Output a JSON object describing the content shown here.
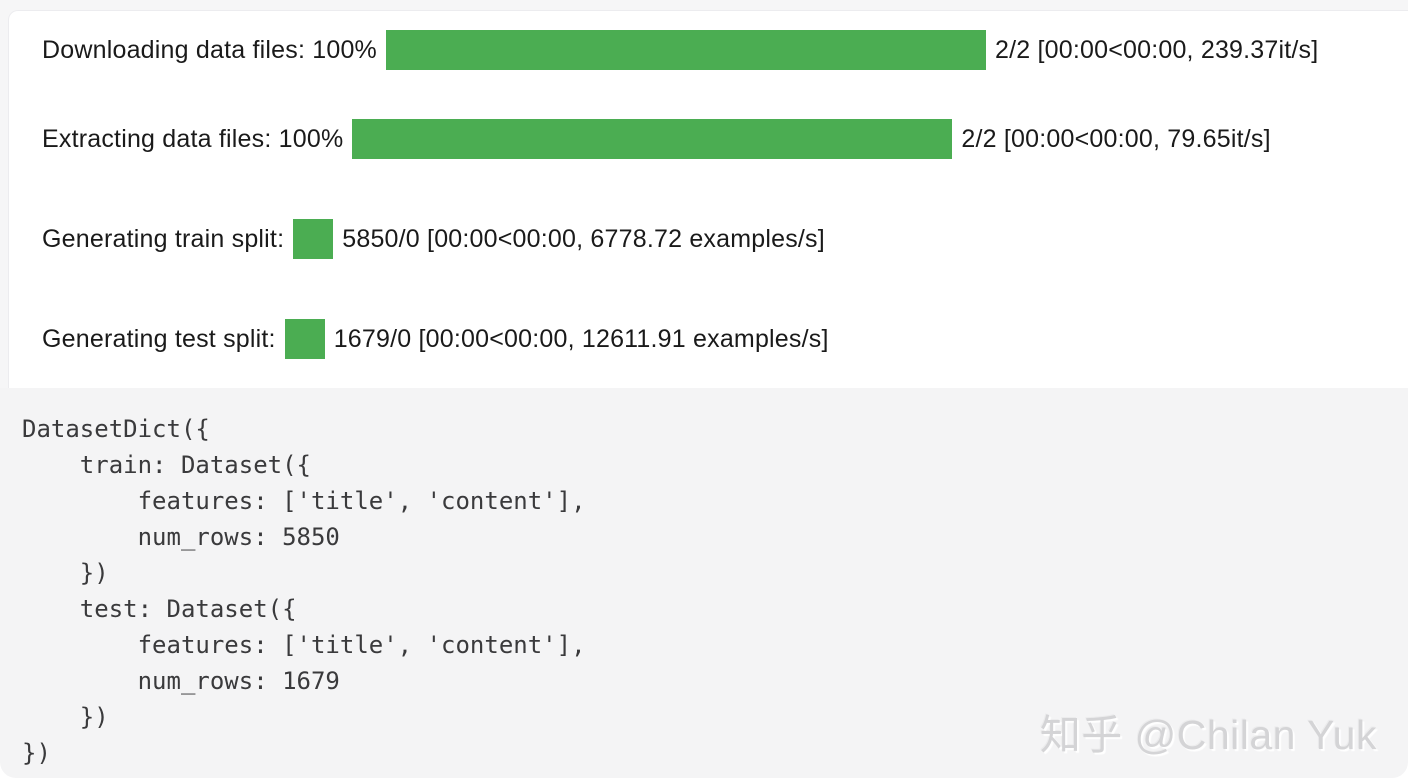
{
  "colors": {
    "bar_green": "#4bad52",
    "panel_bg": "#ffffff",
    "page_backing": "#f6f6f7",
    "code_bg": "#f4f4f5",
    "label_text": "#1a1a1a",
    "code_text": "#3a3a3c",
    "watermark_text": "#d4d4d6"
  },
  "progress_bars": [
    {
      "label": "Downloading data files: 100%",
      "percent": 100,
      "stats": "2/2 [00:00<00:00, 239.37it/s]"
    },
    {
      "label": "Extracting data files: 100%",
      "percent": 100,
      "stats": "2/2 [00:00<00:00, 79.65it/s]"
    },
    {
      "label": "Generating train split:",
      "stats": "5850/0 [00:00<00:00, 6778.72 examples/s]"
    },
    {
      "label": "Generating test split:",
      "stats": "1679/0 [00:00<00:00, 12611.91 examples/s]"
    }
  ],
  "code_output": {
    "lines": [
      "DatasetDict({",
      "    train: Dataset({",
      "        features: ['title', 'content'],",
      "        num_rows: 5850",
      "    })",
      "    test: Dataset({",
      "        features: ['title', 'content'],",
      "        num_rows: 1679",
      "    })",
      "})"
    ]
  },
  "watermark": {
    "text": "知乎 @Chilan Yuk"
  }
}
